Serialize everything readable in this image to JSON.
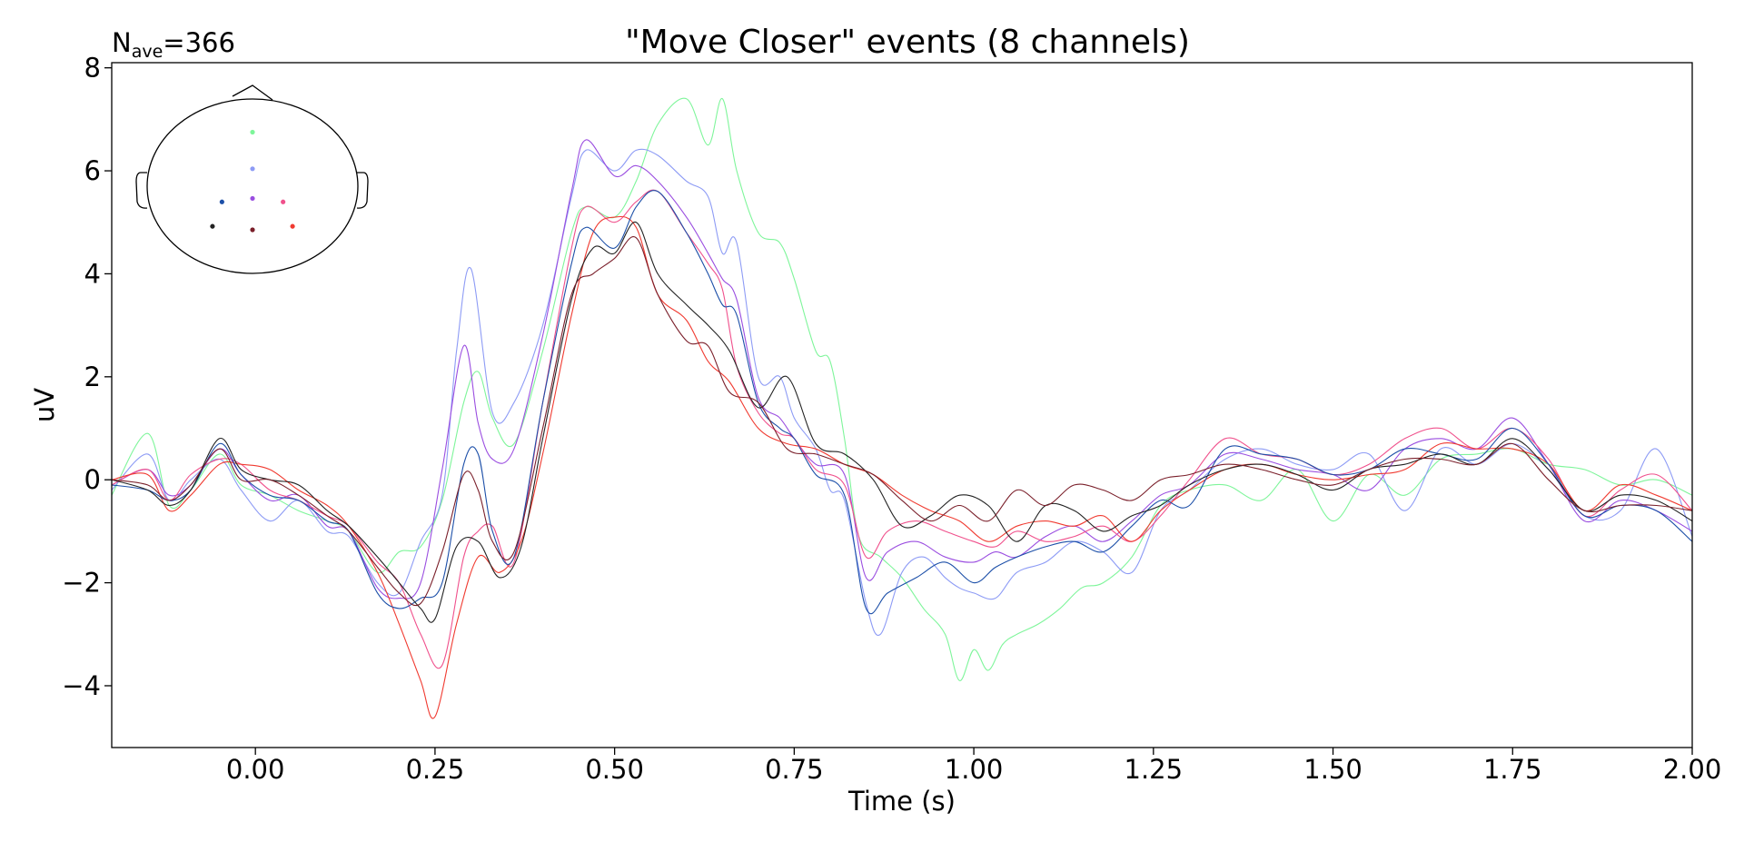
{
  "chart_data": {
    "type": "line",
    "title": "\"Move Closer\" events (8 channels)",
    "annotation": {
      "base": "N",
      "sub": "ave",
      "rest": "=366"
    },
    "xlabel": "Time (s)",
    "ylabel": "uV",
    "xlim": [
      -0.2,
      2.0
    ],
    "ylim": [
      -5.2,
      8.1
    ],
    "xticks": [
      0.0,
      0.25,
      0.5,
      0.75,
      1.0,
      1.25,
      1.5,
      1.75,
      2.0
    ],
    "xtick_labels": [
      "0.00",
      "0.25",
      "0.50",
      "0.75",
      "1.00",
      "1.25",
      "1.50",
      "1.75",
      "2.00"
    ],
    "yticks": [
      -4,
      -2,
      0,
      2,
      4,
      6,
      8
    ],
    "ytick_labels": [
      "−4",
      "−2",
      "0",
      "2",
      "4",
      "6",
      "8"
    ],
    "grid": false,
    "legend": "none",
    "sensor_inset": "top-left head outline with 8 colored sensor dots",
    "series": [
      {
        "color": "#7ef59a",
        "x": [
          -0.2,
          -0.15,
          -0.12,
          -0.09,
          -0.05,
          -0.02,
          0.02,
          0.06,
          0.1,
          0.13,
          0.17,
          0.2,
          0.23,
          0.26,
          0.29,
          0.31,
          0.33,
          0.36,
          0.4,
          0.44,
          0.46,
          0.5,
          0.53,
          0.56,
          0.6,
          0.63,
          0.65,
          0.67,
          0.7,
          0.73,
          0.75,
          0.78,
          0.8,
          0.82,
          0.84,
          0.87,
          0.9,
          0.93,
          0.96,
          0.98,
          1.0,
          1.02,
          1.04,
          1.06,
          1.09,
          1.12,
          1.15,
          1.18,
          1.22,
          1.26,
          1.3,
          1.35,
          1.4,
          1.45,
          1.5,
          1.55,
          1.6,
          1.65,
          1.7,
          1.75,
          1.8,
          1.85,
          1.9,
          1.95,
          2.0
        ],
        "y": [
          -0.3,
          0.9,
          -0.5,
          -0.2,
          0.5,
          -0.1,
          -0.3,
          -0.6,
          -0.8,
          -1.0,
          -1.8,
          -1.4,
          -1.3,
          -0.4,
          1.5,
          2.1,
          1.2,
          0.7,
          2.5,
          4.8,
          5.3,
          5.1,
          5.8,
          6.9,
          7.4,
          6.5,
          7.4,
          6.0,
          4.8,
          4.6,
          3.9,
          2.5,
          2.3,
          0.8,
          -1.1,
          -1.5,
          -1.9,
          -2.5,
          -3.0,
          -3.9,
          -3.3,
          -3.7,
          -3.2,
          -3.0,
          -2.8,
          -2.5,
          -2.1,
          -2.0,
          -1.5,
          -0.5,
          -0.2,
          -0.1,
          -0.4,
          0.2,
          -0.8,
          0.1,
          -0.3,
          0.4,
          0.5,
          0.6,
          0.3,
          0.2,
          -0.1,
          0.0,
          -0.3
        ]
      },
      {
        "color": "#8d9bf5",
        "x": [
          -0.2,
          -0.15,
          -0.12,
          -0.09,
          -0.05,
          -0.02,
          0.02,
          0.06,
          0.1,
          0.13,
          0.17,
          0.2,
          0.23,
          0.26,
          0.28,
          0.3,
          0.33,
          0.36,
          0.4,
          0.44,
          0.46,
          0.5,
          0.53,
          0.56,
          0.6,
          0.63,
          0.65,
          0.67,
          0.7,
          0.73,
          0.75,
          0.78,
          0.8,
          0.82,
          0.85,
          0.87,
          0.9,
          0.93,
          0.96,
          0.98,
          1.0,
          1.03,
          1.06,
          1.1,
          1.14,
          1.18,
          1.22,
          1.26,
          1.3,
          1.35,
          1.4,
          1.45,
          1.5,
          1.55,
          1.6,
          1.65,
          1.7,
          1.75,
          1.8,
          1.85,
          1.9,
          1.95,
          2.0
        ],
        "y": [
          -0.2,
          0.5,
          -0.4,
          0.0,
          0.4,
          -0.2,
          -0.8,
          -0.4,
          -1.0,
          -1.1,
          -2.0,
          -2.2,
          -1.2,
          -0.3,
          2.5,
          4.1,
          1.3,
          1.5,
          3.0,
          5.5,
          6.4,
          6.0,
          6.4,
          6.3,
          5.8,
          5.5,
          4.4,
          4.6,
          2.0,
          2.0,
          1.2,
          0.6,
          -0.2,
          -0.4,
          -2.4,
          -3.0,
          -1.8,
          -1.5,
          -1.9,
          -2.1,
          -2.2,
          -2.3,
          -1.8,
          -1.6,
          -1.2,
          -1.4,
          -1.8,
          -0.6,
          -0.2,
          0.4,
          0.6,
          0.3,
          0.2,
          0.5,
          -0.6,
          0.6,
          0.3,
          0.7,
          0.2,
          -0.7,
          -0.6,
          0.6,
          -1.1
        ]
      },
      {
        "color": "#9a4de0",
        "x": [
          -0.2,
          -0.15,
          -0.12,
          -0.09,
          -0.05,
          -0.02,
          0.02,
          0.06,
          0.1,
          0.13,
          0.17,
          0.2,
          0.23,
          0.26,
          0.29,
          0.31,
          0.33,
          0.36,
          0.4,
          0.44,
          0.46,
          0.5,
          0.53,
          0.56,
          0.6,
          0.63,
          0.65,
          0.67,
          0.7,
          0.73,
          0.75,
          0.78,
          0.82,
          0.85,
          0.88,
          0.92,
          0.96,
          1.0,
          1.03,
          1.06,
          1.1,
          1.14,
          1.18,
          1.22,
          1.26,
          1.3,
          1.35,
          1.4,
          1.45,
          1.5,
          1.55,
          1.6,
          1.65,
          1.7,
          1.75,
          1.8,
          1.85,
          1.9,
          1.95,
          2.0
        ],
        "y": [
          -0.1,
          0.2,
          -0.3,
          -0.1,
          0.6,
          0.1,
          -0.4,
          -0.3,
          -0.9,
          -1.0,
          -2.1,
          -2.3,
          -2.0,
          0.2,
          2.6,
          1.1,
          0.4,
          0.6,
          2.8,
          5.6,
          6.6,
          5.9,
          6.1,
          5.8,
          5.1,
          4.4,
          3.9,
          3.5,
          1.6,
          1.2,
          0.8,
          0.3,
          0.1,
          -1.9,
          -1.4,
          -1.2,
          -1.5,
          -1.6,
          -1.4,
          -1.5,
          -1.1,
          -0.9,
          -1.2,
          -0.8,
          -0.3,
          -0.1,
          0.5,
          0.4,
          0.2,
          0.1,
          -0.2,
          0.6,
          0.8,
          0.6,
          1.2,
          0.3,
          -0.8,
          -0.4,
          -0.6,
          -1.0
        ]
      },
      {
        "color": "#f0508c",
        "x": [
          -0.2,
          -0.15,
          -0.12,
          -0.09,
          -0.05,
          -0.02,
          0.02,
          0.06,
          0.1,
          0.13,
          0.17,
          0.2,
          0.23,
          0.26,
          0.29,
          0.31,
          0.33,
          0.36,
          0.4,
          0.44,
          0.46,
          0.5,
          0.53,
          0.56,
          0.6,
          0.63,
          0.65,
          0.67,
          0.7,
          0.73,
          0.75,
          0.78,
          0.82,
          0.85,
          0.88,
          0.92,
          0.96,
          1.0,
          1.03,
          1.06,
          1.1,
          1.14,
          1.18,
          1.22,
          1.26,
          1.3,
          1.35,
          1.4,
          1.45,
          1.5,
          1.55,
          1.6,
          1.65,
          1.7,
          1.75,
          1.8,
          1.85,
          1.9,
          1.95,
          2.0
        ],
        "y": [
          -0.1,
          0.2,
          -0.4,
          0.1,
          0.4,
          0.3,
          -0.2,
          -0.4,
          -0.7,
          -0.9,
          -1.6,
          -2.0,
          -3.0,
          -3.6,
          -1.5,
          -1.0,
          -0.9,
          -1.6,
          1.5,
          4.5,
          5.3,
          5.0,
          5.4,
          5.6,
          4.8,
          4.2,
          3.7,
          2.2,
          1.3,
          0.9,
          0.8,
          0.2,
          -0.1,
          -1.5,
          -1.0,
          -0.8,
          -1.0,
          -1.2,
          -1.3,
          -1.0,
          -1.2,
          -1.1,
          -0.9,
          -1.2,
          -0.7,
          0.0,
          0.8,
          0.5,
          0.4,
          0.1,
          0.3,
          0.8,
          1.0,
          0.6,
          1.0,
          0.4,
          -0.7,
          -0.2,
          0.1,
          -0.6
        ]
      },
      {
        "color": "#f03a30",
        "x": [
          -0.2,
          -0.15,
          -0.12,
          -0.09,
          -0.05,
          -0.02,
          0.02,
          0.06,
          0.1,
          0.13,
          0.17,
          0.2,
          0.23,
          0.25,
          0.28,
          0.31,
          0.34,
          0.37,
          0.4,
          0.44,
          0.47,
          0.5,
          0.53,
          0.56,
          0.6,
          0.63,
          0.66,
          0.7,
          0.74,
          0.78,
          0.82,
          0.86,
          0.9,
          0.94,
          0.98,
          1.02,
          1.06,
          1.1,
          1.14,
          1.18,
          1.22,
          1.26,
          1.3,
          1.35,
          1.4,
          1.45,
          1.5,
          1.55,
          1.6,
          1.65,
          1.7,
          1.75,
          1.8,
          1.85,
          1.9,
          1.95,
          2.0
        ],
        "y": [
          0.0,
          0.1,
          -0.6,
          -0.3,
          0.3,
          0.3,
          0.2,
          -0.2,
          -0.5,
          -0.9,
          -1.8,
          -2.8,
          -3.9,
          -4.6,
          -2.8,
          -1.5,
          -1.8,
          -1.2,
          0.5,
          3.2,
          4.8,
          5.1,
          4.9,
          3.6,
          3.1,
          2.3,
          1.9,
          1.0,
          0.7,
          0.6,
          0.3,
          0.1,
          -0.3,
          -0.6,
          -0.8,
          -1.2,
          -0.9,
          -0.8,
          -0.9,
          -0.7,
          -1.2,
          -0.6,
          -0.2,
          0.2,
          0.3,
          0.1,
          0.0,
          0.1,
          0.2,
          0.7,
          0.6,
          0.6,
          0.3,
          -0.6,
          -0.1,
          -0.3,
          -0.6
        ]
      },
      {
        "color": "#1c4fa8",
        "x": [
          -0.2,
          -0.15,
          -0.12,
          -0.09,
          -0.05,
          -0.02,
          0.02,
          0.06,
          0.1,
          0.13,
          0.17,
          0.2,
          0.23,
          0.26,
          0.29,
          0.31,
          0.33,
          0.36,
          0.4,
          0.44,
          0.46,
          0.5,
          0.53,
          0.56,
          0.6,
          0.63,
          0.65,
          0.67,
          0.7,
          0.73,
          0.75,
          0.78,
          0.82,
          0.85,
          0.88,
          0.92,
          0.96,
          1.0,
          1.03,
          1.06,
          1.1,
          1.14,
          1.18,
          1.22,
          1.26,
          1.3,
          1.35,
          1.4,
          1.45,
          1.5,
          1.55,
          1.6,
          1.65,
          1.7,
          1.75,
          1.8,
          1.85,
          1.9,
          1.95,
          2.0
        ],
        "y": [
          -0.1,
          -0.2,
          -0.4,
          -0.2,
          0.7,
          0.1,
          -0.3,
          -0.4,
          -0.8,
          -1.0,
          -2.2,
          -2.5,
          -2.3,
          -2.0,
          0.3,
          0.5,
          -1.0,
          -1.5,
          1.5,
          4.2,
          4.9,
          4.5,
          5.3,
          5.6,
          4.8,
          4.0,
          3.4,
          3.2,
          1.5,
          1.0,
          0.8,
          0.1,
          -0.3,
          -2.5,
          -2.2,
          -1.9,
          -1.6,
          -2.0,
          -1.7,
          -1.5,
          -1.3,
          -1.2,
          -1.4,
          -0.9,
          -0.4,
          -0.5,
          0.6,
          0.5,
          0.4,
          0.1,
          0.2,
          0.6,
          0.5,
          0.4,
          1.0,
          0.3,
          -0.7,
          -0.5,
          -0.6,
          -1.2
        ]
      },
      {
        "color": "#222222",
        "x": [
          -0.2,
          -0.15,
          -0.12,
          -0.09,
          -0.05,
          -0.02,
          0.02,
          0.06,
          0.1,
          0.13,
          0.17,
          0.2,
          0.23,
          0.25,
          0.28,
          0.31,
          0.34,
          0.37,
          0.4,
          0.44,
          0.47,
          0.5,
          0.53,
          0.56,
          0.6,
          0.63,
          0.66,
          0.7,
          0.74,
          0.78,
          0.82,
          0.86,
          0.9,
          0.94,
          0.98,
          1.02,
          1.06,
          1.1,
          1.14,
          1.18,
          1.22,
          1.26,
          1.3,
          1.35,
          1.4,
          1.45,
          1.5,
          1.55,
          1.6,
          1.65,
          1.7,
          1.75,
          1.8,
          1.85,
          1.9,
          1.95,
          2.0
        ],
        "y": [
          0.0,
          -0.2,
          -0.5,
          -0.2,
          0.8,
          0.2,
          0.0,
          -0.1,
          -0.6,
          -0.9,
          -1.5,
          -2.0,
          -2.5,
          -2.7,
          -1.3,
          -1.2,
          -1.9,
          -1.3,
          0.8,
          3.5,
          4.5,
          4.4,
          5.0,
          4.0,
          3.4,
          3.0,
          2.5,
          1.4,
          2.0,
          0.7,
          0.5,
          0.0,
          -0.9,
          -0.7,
          -0.3,
          -0.5,
          -1.2,
          -0.5,
          -0.6,
          -1.0,
          -0.7,
          -0.5,
          -0.1,
          0.2,
          0.3,
          0.1,
          -0.2,
          0.2,
          0.3,
          0.5,
          0.3,
          0.8,
          0.2,
          -0.6,
          -0.3,
          -0.4,
          -0.8
        ]
      },
      {
        "color": "#7a1f2a",
        "x": [
          -0.2,
          -0.15,
          -0.12,
          -0.09,
          -0.05,
          -0.02,
          0.02,
          0.06,
          0.1,
          0.13,
          0.17,
          0.2,
          0.23,
          0.26,
          0.29,
          0.31,
          0.33,
          0.36,
          0.4,
          0.44,
          0.47,
          0.5,
          0.53,
          0.56,
          0.6,
          0.63,
          0.66,
          0.7,
          0.74,
          0.78,
          0.82,
          0.86,
          0.9,
          0.94,
          0.98,
          1.02,
          1.06,
          1.1,
          1.14,
          1.18,
          1.22,
          1.26,
          1.3,
          1.35,
          1.4,
          1.45,
          1.5,
          1.55,
          1.6,
          1.65,
          1.7,
          1.75,
          1.8,
          1.85,
          1.9,
          1.95,
          2.0
        ],
        "y": [
          0.0,
          -0.1,
          -0.4,
          -0.1,
          0.6,
          0.0,
          0.0,
          -0.3,
          -0.7,
          -1.0,
          -1.7,
          -2.2,
          -2.4,
          -1.4,
          0.1,
          -0.2,
          -1.2,
          -1.4,
          1.0,
          3.6,
          4.0,
          4.3,
          4.7,
          3.6,
          2.7,
          2.6,
          1.7,
          1.5,
          0.6,
          0.5,
          0.3,
          0.1,
          -0.4,
          -0.8,
          -0.5,
          -0.8,
          -0.2,
          -0.5,
          -0.1,
          -0.2,
          -0.4,
          0.0,
          0.1,
          0.3,
          0.2,
          0.0,
          -0.1,
          0.2,
          0.4,
          0.4,
          0.3,
          0.7,
          0.0,
          -0.6,
          -0.5,
          -0.5,
          -0.6
        ]
      }
    ],
    "sensors": [
      {
        "color": "#7ef59a",
        "u": 0.0,
        "v": 0.62
      },
      {
        "color": "#8d9bf5",
        "u": 0.0,
        "v": 0.2
      },
      {
        "color": "#9a4de0",
        "u": 0.0,
        "v": -0.14
      },
      {
        "color": "#1c4fa8",
        "u": -0.29,
        "v": -0.18
      },
      {
        "color": "#f0508c",
        "u": 0.29,
        "v": -0.18
      },
      {
        "color": "#222222",
        "u": -0.38,
        "v": -0.46
      },
      {
        "color": "#7a1f2a",
        "u": 0.0,
        "v": -0.5
      },
      {
        "color": "#f03a30",
        "u": 0.38,
        "v": -0.46
      }
    ]
  }
}
